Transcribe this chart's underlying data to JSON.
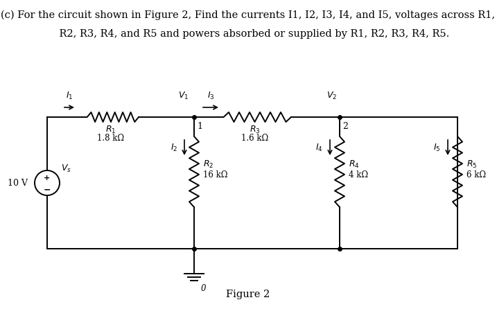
{
  "title_line1": "(c) For the circuit shown in Figure 2, Find the currents I1, I2, I3, I4, and I5, voltages across R1,",
  "title_line2": "    R2, R3, R4, and R5 and powers absorbed or supplied by R1, R2, R3, R4, R5.",
  "figure_caption": "Figure 2",
  "source_voltage": "10 V",
  "source_label": "V_s",
  "r1_val": "1.8 kΩ",
  "r2_val": "16 kΩ",
  "r3_val": "1.6 kΩ",
  "r4_val": "4 kΩ",
  "r5_val": "6 kΩ",
  "bg_color": "#ffffff",
  "line_color": "#000000",
  "text_color": "#000000",
  "font_size_title": 10.5,
  "font_size_labels": 9,
  "font_size_values": 8.5,
  "font_size_caption": 10.5,
  "lw": 1.4
}
